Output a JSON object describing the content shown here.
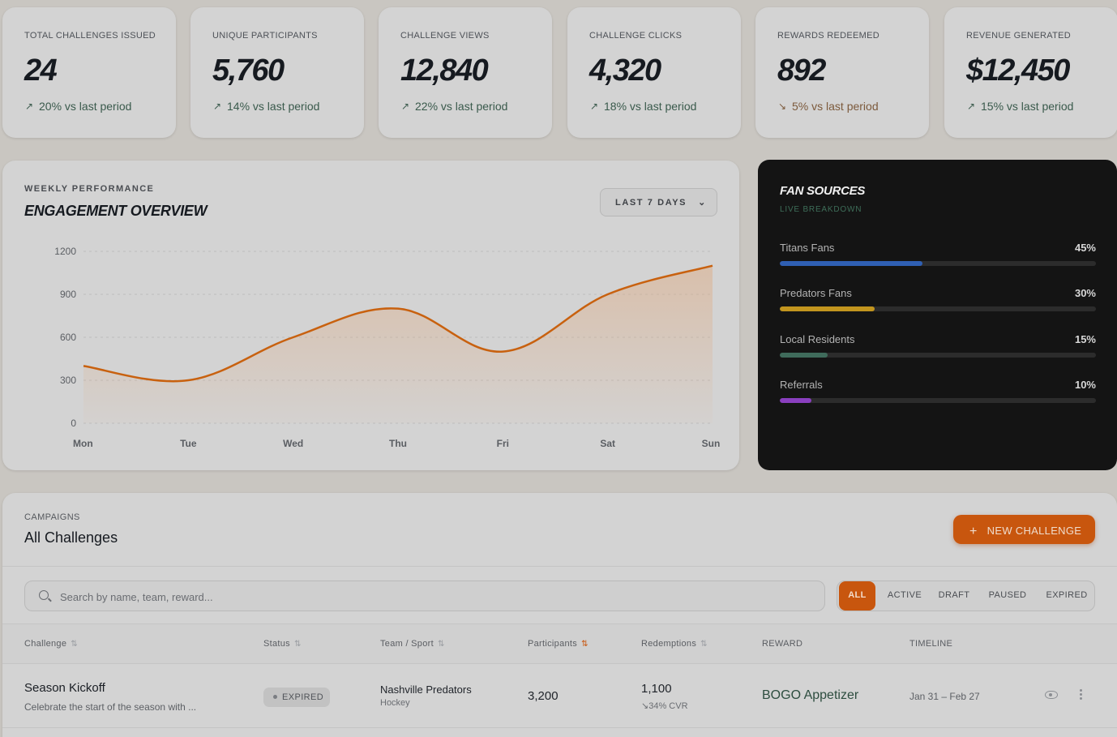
{
  "kpis": [
    {
      "label": "TOTAL CHALLENGES ISSUED",
      "value": "24",
      "trend": "20% vs last period",
      "direction": "up"
    },
    {
      "label": "UNIQUE PARTICIPANTS",
      "value": "5,760",
      "trend": "14% vs last period",
      "direction": "up"
    },
    {
      "label": "CHALLENGE VIEWS",
      "value": "12,840",
      "trend": "22% vs last period",
      "direction": "up"
    },
    {
      "label": "CHALLENGE CLICKS",
      "value": "4,320",
      "trend": "18% vs last period",
      "direction": "up"
    },
    {
      "label": "REWARDS REDEEMED",
      "value": "892",
      "trend": "5% vs last period",
      "direction": "down"
    },
    {
      "label": "REVENUE GENERATED",
      "value": "$12,450",
      "trend": "15% vs last period",
      "direction": "up"
    }
  ],
  "engagement": {
    "eyebrow": "WEEKLY PERFORMANCE",
    "title": "ENGAGEMENT OVERVIEW",
    "range_label": "LAST 7 DAYS",
    "accent": "#c8610f"
  },
  "chart_data": {
    "type": "area",
    "title": "",
    "xlabel": "",
    "ylabel": "",
    "categories": [
      "Mon",
      "Tue",
      "Wed",
      "Thu",
      "Fri",
      "Sat",
      "Sun"
    ],
    "values": [
      400,
      300,
      600,
      800,
      500,
      900,
      1100
    ],
    "ylim": [
      0,
      1200
    ],
    "yticks": [
      "0",
      "300",
      "600",
      "900",
      "1200"
    ],
    "grid": true,
    "legend": "none"
  },
  "fan_sources": {
    "title": "FAN SOURCES",
    "subtitle": "LIVE BREAKDOWN",
    "items": [
      {
        "name": "Titans Fans",
        "pct_label": "45%",
        "value": 45,
        "color": "#2f5fb3"
      },
      {
        "name": "Predators Fans",
        "pct_label": "30%",
        "value": 30,
        "color": "#c2951e"
      },
      {
        "name": "Local Residents",
        "pct_label": "15%",
        "value": 15,
        "color": "#3f6b5b"
      },
      {
        "name": "Referrals",
        "pct_label": "10%",
        "value": 10,
        "color": "#8a3fbf"
      }
    ]
  },
  "campaigns": {
    "eyebrow": "CAMPAIGNS",
    "title": "All Challenges",
    "new_button": "NEW CHALLENGE",
    "search_placeholder": "Search by name, team, reward...",
    "filters": [
      "ALL",
      "ACTIVE",
      "DRAFT",
      "PAUSED",
      "EXPIRED"
    ],
    "active_filter": "ALL",
    "columns": {
      "challenge": "Challenge",
      "status": "Status",
      "team": "Team / Sport",
      "participants": "Participants",
      "redemptions": "Redemptions",
      "reward": "REWARD",
      "timeline": "TIMELINE"
    },
    "rows": [
      {
        "name": "Season Kickoff",
        "description": "Celebrate the start of the season with ...",
        "status": "EXPIRED",
        "team": "Nashville Predators",
        "sport": "Hockey",
        "participants": "3,200",
        "redemptions": "1,100",
        "cvr": "↘34% CVR",
        "reward": "BOGO Appetizer",
        "timeline": "Jan 31 – Feb 27"
      }
    ]
  }
}
